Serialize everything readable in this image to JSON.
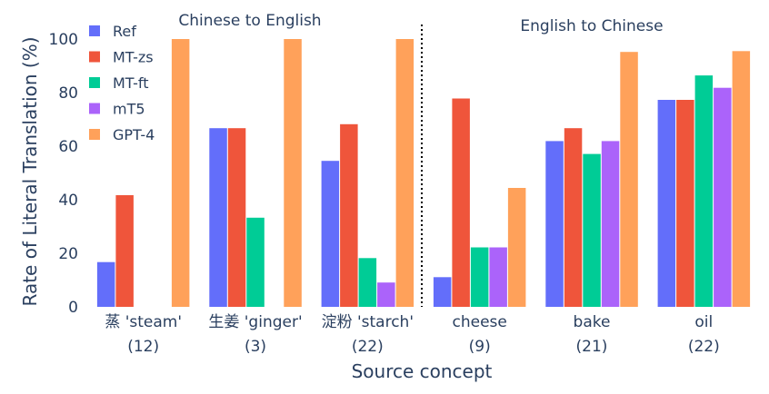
{
  "chart_data": {
    "type": "bar",
    "categories": [
      {
        "name": "蒸 'steam'",
        "count": "(12)"
      },
      {
        "name": "生姜 'ginger'",
        "count": "(3)"
      },
      {
        "name": "淀粉 'starch'",
        "count": "(22)"
      },
      {
        "name": "cheese",
        "count": "(9)"
      },
      {
        "name": "bake",
        "count": "(21)"
      },
      {
        "name": "oil",
        "count": "(22)"
      }
    ],
    "series": [
      {
        "name": "Ref",
        "color": "#636efa",
        "values": [
          16.7,
          66.7,
          54.5,
          11.1,
          61.9,
          77.3
        ]
      },
      {
        "name": "MT-zs",
        "color": "#ef553b",
        "values": [
          41.7,
          66.7,
          68.2,
          77.8,
          66.7,
          77.3
        ]
      },
      {
        "name": "MT-ft",
        "color": "#00cc96",
        "values": [
          0,
          33.3,
          18.2,
          22.2,
          57.1,
          86.4
        ]
      },
      {
        "name": "mT5",
        "color": "#ab63fa",
        "values": [
          0,
          0,
          9.1,
          22.2,
          61.9,
          81.8
        ]
      },
      {
        "name": "GPT-4",
        "color": "#ffa15a",
        "values": [
          100,
          100,
          100,
          44.4,
          95.2,
          95.5
        ]
      }
    ],
    "xlabel": "Source concept",
    "ylabel": "Rate of Literal Translation (%)",
    "ylim": [
      0,
      105
    ],
    "yticks": [
      0,
      20,
      40,
      60,
      80,
      100
    ],
    "annotations": [
      "Chinese to English",
      "English to Chinese"
    ],
    "legend_position": "top-left",
    "grid": false
  }
}
